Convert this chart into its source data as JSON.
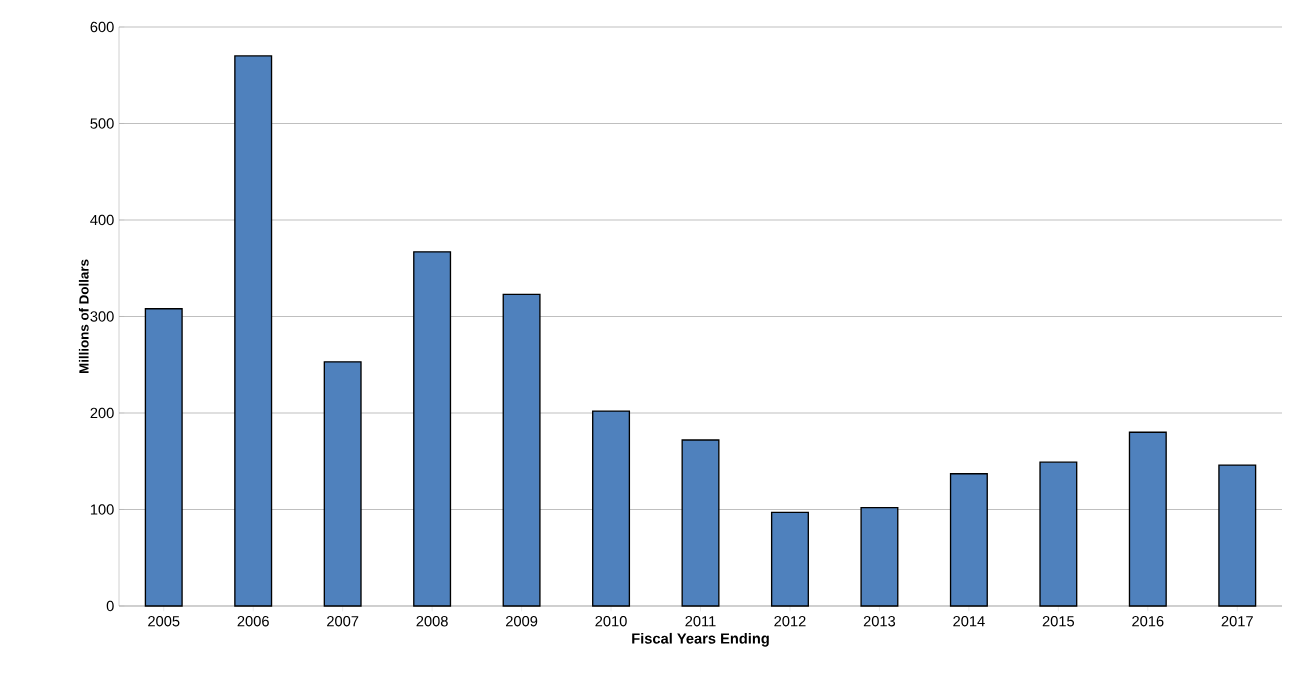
{
  "chart_data": {
    "type": "bar",
    "xlabel": "Fiscal Years Ending",
    "ylabel": "Millions of Dollars",
    "categories": [
      "2005",
      "2006",
      "2007",
      "2008",
      "2009",
      "2010",
      "2011",
      "2012",
      "2013",
      "2014",
      "2015",
      "2016",
      "2017"
    ],
    "values": [
      308,
      570,
      253,
      367,
      323,
      202,
      172,
      97,
      102,
      137,
      149,
      180,
      146
    ],
    "color": "#4f81bd",
    "ylim": [
      0,
      600
    ],
    "yticks": [
      0,
      100,
      200,
      300,
      400,
      500,
      600
    ],
    "grid": "y"
  }
}
